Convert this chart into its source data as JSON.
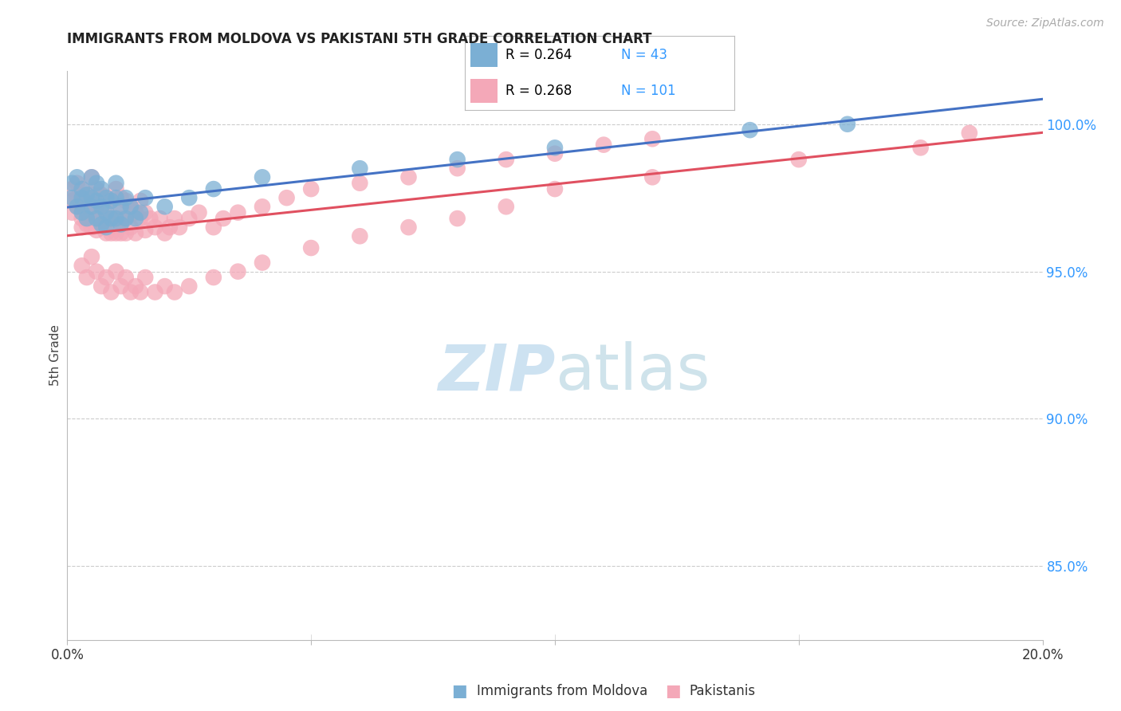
{
  "title": "IMMIGRANTS FROM MOLDOVA VS PAKISTANI 5TH GRADE CORRELATION CHART",
  "source": "Source: ZipAtlas.com",
  "ylabel": "5th Grade",
  "y_ticks": [
    "85.0%",
    "90.0%",
    "95.0%",
    "100.0%"
  ],
  "y_tick_vals": [
    0.85,
    0.9,
    0.95,
    1.0
  ],
  "x_range": [
    0.0,
    0.2
  ],
  "y_range": [
    0.825,
    1.018
  ],
  "legend1_label": "R = 0.264   N = 43",
  "legend2_label": "R = 0.268   N = 101",
  "legend1_color": "#7bafd4",
  "legend2_color": "#f4a8b8",
  "trendline1_color": "#4472c4",
  "trendline2_color": "#e05060",
  "scatter1_color": "#7bafd4",
  "scatter2_color": "#f4a8b8",
  "background_color": "#ffffff",
  "grid_color": "#cccccc",
  "moldova_x": [
    0.001,
    0.001,
    0.002,
    0.002,
    0.003,
    0.003,
    0.003,
    0.004,
    0.004,
    0.005,
    0.005,
    0.005,
    0.006,
    0.006,
    0.006,
    0.007,
    0.007,
    0.007,
    0.008,
    0.008,
    0.008,
    0.009,
    0.009,
    0.01,
    0.01,
    0.01,
    0.011,
    0.011,
    0.012,
    0.012,
    0.013,
    0.014,
    0.015,
    0.016,
    0.02,
    0.025,
    0.03,
    0.04,
    0.06,
    0.08,
    0.1,
    0.14,
    0.16
  ],
  "moldova_y": [
    0.98,
    0.975,
    0.982,
    0.972,
    0.978,
    0.975,
    0.97,
    0.976,
    0.968,
    0.982,
    0.975,
    0.972,
    0.98,
    0.974,
    0.968,
    0.978,
    0.972,
    0.966,
    0.975,
    0.97,
    0.965,
    0.974,
    0.968,
    0.98,
    0.975,
    0.968,
    0.972,
    0.966,
    0.975,
    0.968,
    0.972,
    0.968,
    0.97,
    0.975,
    0.972,
    0.975,
    0.978,
    0.982,
    0.985,
    0.988,
    0.992,
    0.998,
    1.0
  ],
  "pakistan_x": [
    0.001,
    0.001,
    0.001,
    0.002,
    0.002,
    0.002,
    0.003,
    0.003,
    0.003,
    0.003,
    0.004,
    0.004,
    0.004,
    0.005,
    0.005,
    0.005,
    0.005,
    0.006,
    0.006,
    0.006,
    0.006,
    0.007,
    0.007,
    0.007,
    0.008,
    0.008,
    0.008,
    0.009,
    0.009,
    0.009,
    0.01,
    0.01,
    0.01,
    0.01,
    0.011,
    0.011,
    0.011,
    0.012,
    0.012,
    0.012,
    0.013,
    0.013,
    0.014,
    0.014,
    0.015,
    0.015,
    0.016,
    0.016,
    0.017,
    0.018,
    0.019,
    0.02,
    0.021,
    0.022,
    0.023,
    0.025,
    0.027,
    0.03,
    0.032,
    0.035,
    0.04,
    0.045,
    0.05,
    0.06,
    0.07,
    0.08,
    0.09,
    0.1,
    0.11,
    0.12,
    0.003,
    0.004,
    0.005,
    0.006,
    0.007,
    0.008,
    0.009,
    0.01,
    0.011,
    0.012,
    0.013,
    0.014,
    0.015,
    0.016,
    0.018,
    0.02,
    0.022,
    0.025,
    0.03,
    0.035,
    0.04,
    0.05,
    0.06,
    0.07,
    0.08,
    0.09,
    0.1,
    0.12,
    0.15,
    0.175,
    0.185
  ],
  "pakistan_y": [
    0.978,
    0.974,
    0.97,
    0.98,
    0.975,
    0.972,
    0.978,
    0.972,
    0.968,
    0.965,
    0.976,
    0.97,
    0.966,
    0.982,
    0.976,
    0.97,
    0.965,
    0.978,
    0.972,
    0.968,
    0.964,
    0.976,
    0.97,
    0.965,
    0.975,
    0.968,
    0.963,
    0.974,
    0.968,
    0.963,
    0.978,
    0.972,
    0.968,
    0.963,
    0.975,
    0.968,
    0.963,
    0.974,
    0.968,
    0.963,
    0.972,
    0.965,
    0.97,
    0.963,
    0.974,
    0.968,
    0.97,
    0.964,
    0.968,
    0.965,
    0.968,
    0.963,
    0.965,
    0.968,
    0.965,
    0.968,
    0.97,
    0.965,
    0.968,
    0.97,
    0.972,
    0.975,
    0.978,
    0.98,
    0.982,
    0.985,
    0.988,
    0.99,
    0.993,
    0.995,
    0.952,
    0.948,
    0.955,
    0.95,
    0.945,
    0.948,
    0.943,
    0.95,
    0.945,
    0.948,
    0.943,
    0.945,
    0.943,
    0.948,
    0.943,
    0.945,
    0.943,
    0.945,
    0.948,
    0.95,
    0.953,
    0.958,
    0.962,
    0.965,
    0.968,
    0.972,
    0.978,
    0.982,
    0.988,
    0.992,
    0.997
  ]
}
